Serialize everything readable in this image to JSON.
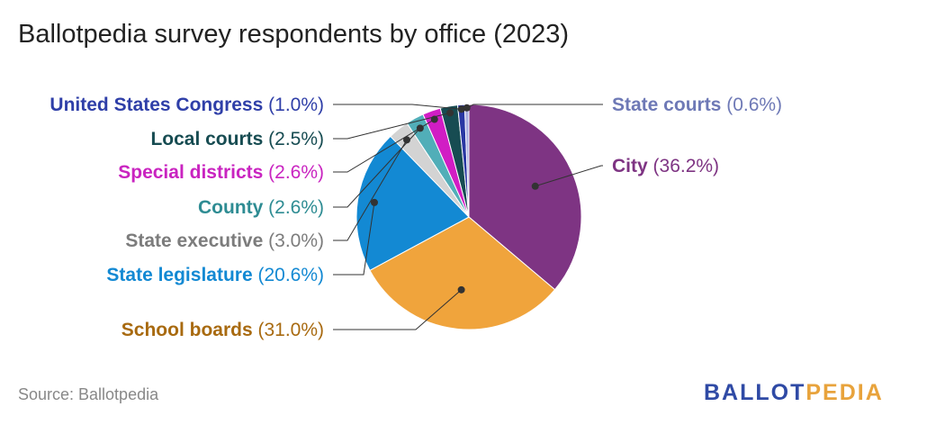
{
  "title": "Ballotpedia survey respondents by office (2023)",
  "source": "Source: Ballotpedia",
  "logo": {
    "part1": "BALLOT",
    "part2": "PEDIA",
    "color1": "#2F4AA5",
    "color2": "#E8A33C"
  },
  "chart_data": {
    "type": "pie",
    "title": "Ballotpedia survey respondents by office (2023)",
    "slices": [
      {
        "label": "City",
        "value": 36.2,
        "pct_text": "(36.2%)",
        "color": "#7E3483",
        "label_color": "#7E3483"
      },
      {
        "label": "School boards",
        "value": 31.0,
        "pct_text": "(31.0%)",
        "color": "#F0A43C",
        "label_color": "#A86A10"
      },
      {
        "label": "State legislature",
        "value": 20.6,
        "pct_text": "(20.6%)",
        "color": "#1389D3",
        "label_color": "#1389D3"
      },
      {
        "label": "State executive",
        "value": 3.0,
        "pct_text": "(3.0%)",
        "color": "#D3D3D3",
        "label_color": "#7C7C7C"
      },
      {
        "label": "County",
        "value": 2.6,
        "pct_text": "(2.6%)",
        "color": "#51AEB8",
        "label_color": "#2E8C93"
      },
      {
        "label": "Special districts",
        "value": 2.6,
        "pct_text": "(2.6%)",
        "color": "#D11DC4",
        "label_color": "#C924C0"
      },
      {
        "label": "Local courts",
        "value": 2.5,
        "pct_text": "(2.5%)",
        "color": "#174C52",
        "label_color": "#174C52"
      },
      {
        "label": "United States Congress",
        "value": 1.0,
        "pct_text": "(1.0%)",
        "color": "#2937A3",
        "label_color": "#2F3FA8"
      },
      {
        "label": "State courts",
        "value": 0.6,
        "pct_text": "(0.6%)",
        "color": "#A9ADE0",
        "label_color": "#6E79B6"
      }
    ]
  }
}
